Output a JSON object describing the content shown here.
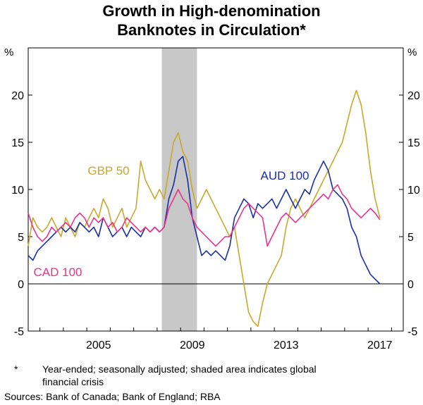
{
  "title": {
    "line1": "Growth in High-denomination",
    "line2": "Banknotes in Circulation*"
  },
  "footnote": {
    "marker": "*",
    "text_line1": "Year-ended; seasonally adjusted; shaded area indicates global",
    "text_line2": "financial crisis"
  },
  "sources": "Sources: Bank of Canada; Bank of England; RBA",
  "chart_data": {
    "type": "line",
    "title": "Growth in High-denomination Banknotes in Circulation*",
    "ylabel_left": "%",
    "ylabel_right": "%",
    "ylim": [
      -5,
      25
    ],
    "yticks": [
      -5,
      0,
      5,
      10,
      15,
      20
    ],
    "xlim": [
      2002.5,
      2018.5
    ],
    "xticks": [
      2005,
      2009,
      2013,
      2017
    ],
    "xtick_labels": [
      "2005",
      "2009",
      "2013",
      "2017"
    ],
    "shaded_region": {
      "x": [
        2008.2,
        2009.7
      ],
      "label": "global financial crisis"
    },
    "gridlines": false,
    "colors": {
      "gbp": "#c8a82c",
      "aud": "#1a2ea8",
      "cad": "#e8338a",
      "shade": "#c8c8c8"
    },
    "series": [
      {
        "name": "GBP 50",
        "label": "GBP 50",
        "color": "#c8a82c",
        "x": [
          2002.5,
          2002.7,
          2002.9,
          2003.1,
          2003.3,
          2003.5,
          2003.7,
          2003.9,
          2004.1,
          2004.3,
          2004.5,
          2004.7,
          2004.9,
          2005.1,
          2005.3,
          2005.5,
          2005.7,
          2005.9,
          2006.1,
          2006.3,
          2006.5,
          2006.7,
          2006.9,
          2007.1,
          2007.3,
          2007.5,
          2007.7,
          2007.9,
          2008.1,
          2008.3,
          2008.5,
          2008.7,
          2008.9,
          2009.1,
          2009.3,
          2009.5,
          2009.7,
          2009.9,
          2010.1,
          2010.3,
          2010.5,
          2010.7,
          2010.9,
          2011.1,
          2011.3,
          2011.5,
          2011.7,
          2011.9,
          2012.1,
          2012.3,
          2012.5,
          2012.7,
          2012.9,
          2013.1,
          2013.3,
          2013.5,
          2013.7,
          2013.9,
          2014.1,
          2014.3,
          2014.5,
          2014.7,
          2014.9,
          2015.1,
          2015.3,
          2015.5,
          2015.7,
          2015.9,
          2016.1,
          2016.3,
          2016.5,
          2016.7,
          2016.9,
          2017.1,
          2017.3,
          2017.5
        ],
        "values": [
          4,
          7,
          6,
          5.5,
          6,
          7,
          6,
          5,
          7,
          6,
          5,
          6.5,
          6,
          7,
          8,
          7,
          9,
          8,
          6,
          7,
          8,
          6,
          7,
          8,
          13,
          11,
          10,
          9,
          10,
          9,
          12,
          15,
          16,
          14,
          13,
          10,
          8,
          9,
          10,
          9,
          8,
          7,
          6,
          5,
          6,
          3,
          0,
          -3,
          -4,
          -4.5,
          -2,
          0,
          1,
          2,
          3,
          6,
          8,
          9,
          8,
          7,
          8,
          9,
          10,
          11,
          12,
          13,
          14,
          15,
          17,
          19,
          20.5,
          19,
          16,
          12,
          9,
          7
        ]
      },
      {
        "name": "AUD 100",
        "label": "AUD 100",
        "color": "#1a2ea8",
        "x": [
          2002.5,
          2002.7,
          2002.9,
          2003.1,
          2003.3,
          2003.5,
          2003.7,
          2003.9,
          2004.1,
          2004.3,
          2004.5,
          2004.7,
          2004.9,
          2005.1,
          2005.3,
          2005.5,
          2005.7,
          2005.9,
          2006.1,
          2006.3,
          2006.5,
          2006.7,
          2006.9,
          2007.1,
          2007.3,
          2007.5,
          2007.7,
          2007.9,
          2008.1,
          2008.3,
          2008.5,
          2008.7,
          2008.9,
          2009.1,
          2009.3,
          2009.5,
          2009.7,
          2009.9,
          2010.1,
          2010.3,
          2010.5,
          2010.7,
          2010.9,
          2011.1,
          2011.3,
          2011.5,
          2011.7,
          2011.9,
          2012.1,
          2012.3,
          2012.5,
          2012.7,
          2012.9,
          2013.1,
          2013.3,
          2013.5,
          2013.7,
          2013.9,
          2014.1,
          2014.3,
          2014.5,
          2014.7,
          2014.9,
          2015.1,
          2015.3,
          2015.5,
          2015.7,
          2015.9,
          2016.1,
          2016.3,
          2016.5,
          2016.7,
          2016.9,
          2017.1,
          2017.3,
          2017.5
        ],
        "values": [
          3,
          2.5,
          3.5,
          4,
          4.5,
          5,
          5.5,
          6,
          5.5,
          6,
          5.5,
          6.5,
          6,
          5.5,
          6,
          5,
          7,
          6,
          5,
          5.5,
          6,
          5,
          6,
          5.5,
          5,
          6,
          5.5,
          6,
          5.5,
          6,
          9,
          10.5,
          13,
          13.5,
          11,
          7,
          5,
          3,
          3.5,
          3,
          3.5,
          3,
          2.5,
          4,
          7,
          8,
          9,
          8.5,
          7,
          8.5,
          8,
          8.5,
          9,
          8,
          9,
          10,
          9,
          8,
          9,
          10,
          9.5,
          11,
          12,
          13,
          12,
          10,
          9.5,
          9,
          8,
          6,
          5,
          3,
          2,
          1,
          0.5,
          0
        ]
      },
      {
        "name": "CAD 100",
        "label": "CAD 100",
        "color": "#e8338a",
        "x": [
          2002.5,
          2002.7,
          2002.9,
          2003.1,
          2003.3,
          2003.5,
          2003.7,
          2003.9,
          2004.1,
          2004.3,
          2004.5,
          2004.7,
          2004.9,
          2005.1,
          2005.3,
          2005.5,
          2005.7,
          2005.9,
          2006.1,
          2006.3,
          2006.5,
          2006.7,
          2006.9,
          2007.1,
          2007.3,
          2007.5,
          2007.7,
          2007.9,
          2008.1,
          2008.3,
          2008.5,
          2008.7,
          2008.9,
          2009.1,
          2009.3,
          2009.5,
          2009.7,
          2009.9,
          2010.1,
          2010.3,
          2010.5,
          2010.7,
          2010.9,
          2011.1,
          2011.3,
          2011.5,
          2011.7,
          2011.9,
          2012.1,
          2012.3,
          2012.5,
          2012.7,
          2012.9,
          2013.1,
          2013.3,
          2013.5,
          2013.7,
          2013.9,
          2014.1,
          2014.3,
          2014.5,
          2014.7,
          2014.9,
          2015.1,
          2015.3,
          2015.5,
          2015.7,
          2015.9,
          2016.1,
          2016.3,
          2016.5,
          2016.7,
          2016.9,
          2017.1,
          2017.3,
          2017.5
        ],
        "values": [
          7.5,
          6,
          5,
          4.5,
          5,
          6,
          5.5,
          6,
          6.5,
          6,
          7,
          7.5,
          7,
          6,
          7,
          6.5,
          7,
          6,
          6.5,
          5.5,
          6,
          7,
          6.5,
          6,
          5.5,
          6,
          5.5,
          6,
          5.5,
          6,
          8,
          9,
          10,
          9,
          8.5,
          7,
          6,
          5.5,
          5,
          4.5,
          4,
          4.5,
          5,
          5,
          6,
          7,
          8,
          8.5,
          8,
          7.5,
          7,
          4,
          5,
          6,
          7,
          7.5,
          7,
          6.5,
          7,
          7.5,
          8,
          8.5,
          9,
          9.5,
          9,
          10,
          10.5,
          9.5,
          9,
          8,
          7.5,
          7,
          7.5,
          8,
          7.5,
          6.8
        ]
      }
    ]
  }
}
